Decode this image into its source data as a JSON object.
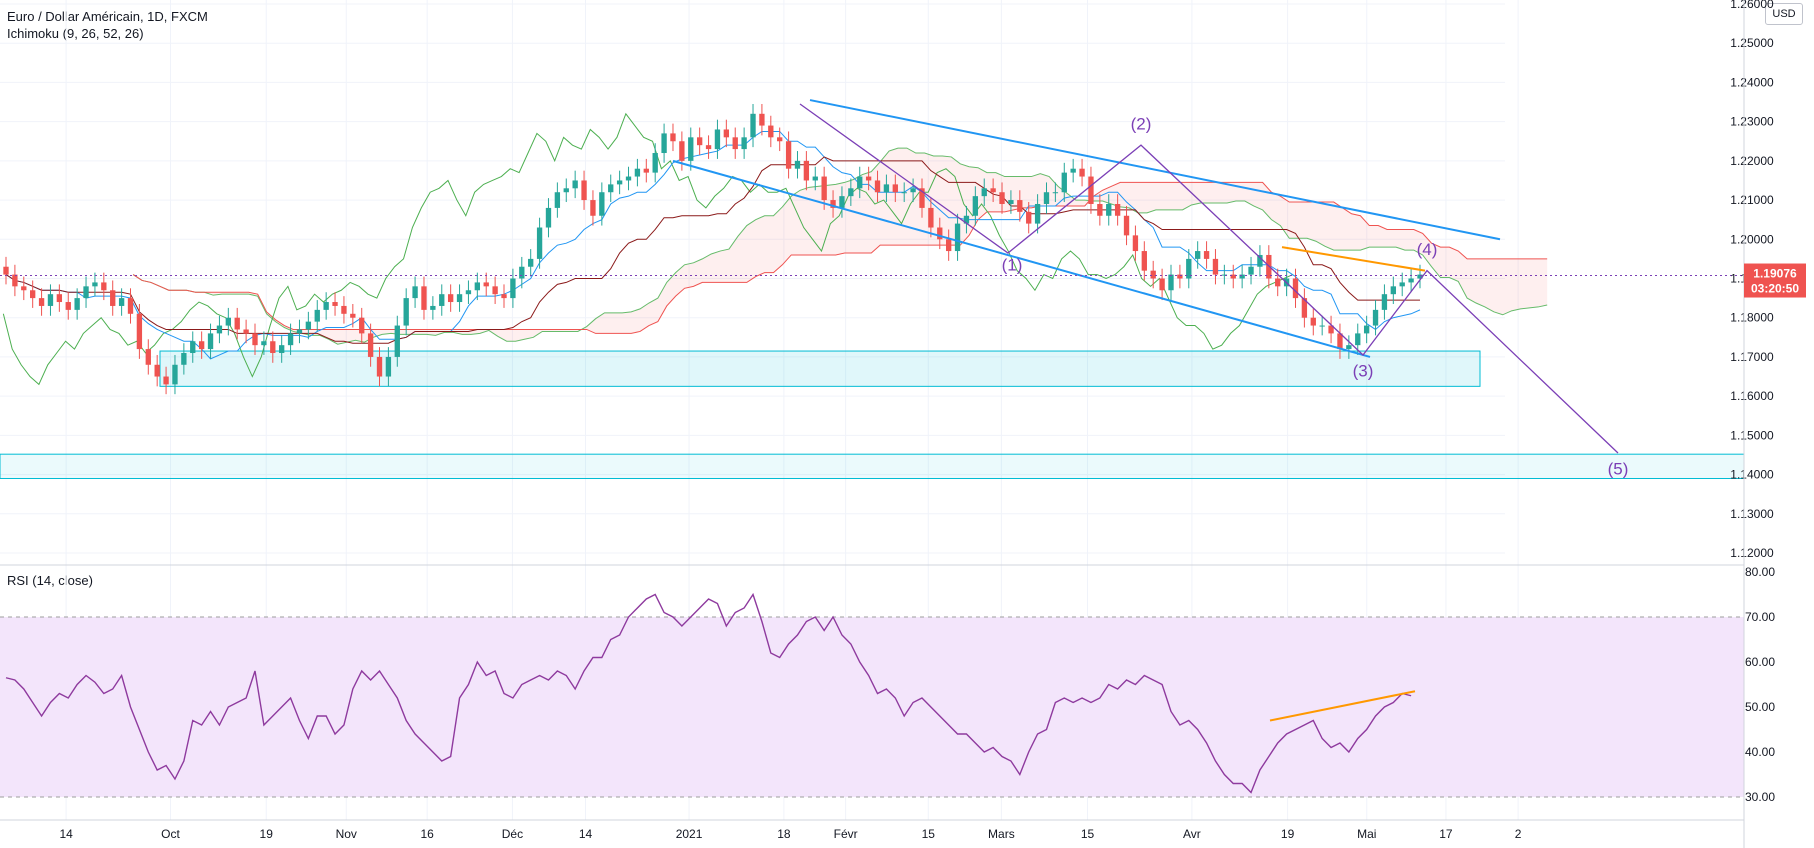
{
  "header": {
    "title": "Euro / Dollar Américain, 1D, FXCM",
    "indicator": "Ichimoku (9, 26, 52, 26)",
    "currency": "USD"
  },
  "rsi_panel": {
    "label": "RSI (14, close)"
  },
  "price_badge": {
    "price": "1.19076",
    "countdown": "03:20:50",
    "color": "#ef5350"
  },
  "colors": {
    "up_candle": "#26a69a",
    "down_candle": "#ef5350",
    "tenkan": "#2196f3",
    "kijun": "#8b1a1a",
    "chikou": "#4caf50",
    "trendline": "#2196f3",
    "wave_line": "#7b3fb6",
    "orange_line": "#ff9800",
    "zone": "#00bcd4",
    "rsi_line": "#8e3a9e",
    "rsi_band": "#f3e5fb"
  },
  "chart_data": [
    {
      "type": "candlestick",
      "title": "Euro / Dollar Américain, 1D, FXCM",
      "ylim": [
        1.12,
        1.26
      ],
      "y_ticks": [
        "1.26000",
        "1.25000",
        "1.24000",
        "1.23000",
        "1.22000",
        "1.21000",
        "1.20000",
        "1.19000",
        "1.18000",
        "1.17000",
        "1.16000",
        "1.15000",
        "1.14000",
        "1.13000",
        "1.12000"
      ],
      "x_ticks": [
        "14",
        "Oct",
        "19",
        "Nov",
        "16",
        "Déc",
        "14",
        "2021",
        "18",
        "Févr",
        "15",
        "Mars",
        "15",
        "Avr",
        "19",
        "Mai",
        "17",
        "2"
      ],
      "closes": [
        1.191,
        1.188,
        1.187,
        1.185,
        1.183,
        1.186,
        1.184,
        1.182,
        1.185,
        1.188,
        1.189,
        1.187,
        1.183,
        1.185,
        1.181,
        1.172,
        1.168,
        1.165,
        1.163,
        1.168,
        1.171,
        1.174,
        1.172,
        1.176,
        1.178,
        1.18,
        1.177,
        1.176,
        1.173,
        1.174,
        1.171,
        1.173,
        1.176,
        1.177,
        1.179,
        1.182,
        1.184,
        1.183,
        1.181,
        1.18,
        1.176,
        1.17,
        1.165,
        1.17,
        1.178,
        1.185,
        1.188,
        1.182,
        1.183,
        1.186,
        1.184,
        1.186,
        1.187,
        1.189,
        1.188,
        1.186,
        1.185,
        1.19,
        1.193,
        1.195,
        1.203,
        1.208,
        1.212,
        1.213,
        1.215,
        1.21,
        1.206,
        1.212,
        1.214,
        1.215,
        1.216,
        1.218,
        1.217,
        1.222,
        1.227,
        1.225,
        1.22,
        1.226,
        1.224,
        1.223,
        1.228,
        1.226,
        1.223,
        1.226,
        1.232,
        1.229,
        1.226,
        1.225,
        1.218,
        1.22,
        1.215,
        1.216,
        1.21,
        1.208,
        1.211,
        1.213,
        1.216,
        1.215,
        1.212,
        1.214,
        1.212,
        1.212,
        1.213,
        1.208,
        1.203,
        1.2,
        1.197,
        1.204,
        1.206,
        1.211,
        1.213,
        1.212,
        1.209,
        1.21,
        1.207,
        1.204,
        1.209,
        1.212,
        1.212,
        1.217,
        1.218,
        1.216,
        1.209,
        1.206,
        1.209,
        1.206,
        1.201,
        1.197,
        1.192,
        1.19,
        1.187,
        1.191,
        1.19,
        1.195,
        1.197,
        1.195,
        1.191,
        1.191,
        1.19,
        1.191,
        1.193,
        1.196,
        1.19,
        1.188,
        1.19,
        1.185,
        1.18,
        1.178,
        1.178,
        1.176,
        1.172,
        1.173,
        1.176,
        1.178,
        1.182,
        1.186,
        1.188,
        1.189,
        1.19,
        1.191
      ],
      "annotations": [
        "(1)",
        "(2)",
        "(3)",
        "(4)",
        "(5)"
      ]
    },
    {
      "type": "line",
      "title": "RSI (14, close)",
      "ylim": [
        30,
        80
      ],
      "y_ticks": [
        "80.00",
        "70.00",
        "60.00",
        "50.00",
        "40.00",
        "30.00"
      ],
      "bands": [
        30,
        70
      ],
      "values": [
        56.5,
        56,
        54,
        51,
        48,
        51,
        53,
        52,
        55,
        57,
        55.5,
        53,
        54,
        57,
        50,
        45,
        40,
        36,
        37,
        34,
        38,
        47,
        46,
        49,
        46,
        50,
        51,
        52,
        58,
        46,
        48,
        50,
        52,
        47,
        43,
        48,
        48,
        44,
        46,
        54,
        58,
        56,
        58,
        55,
        52,
        47,
        44,
        42,
        40,
        38,
        39,
        52,
        55,
        60,
        57,
        58,
        53,
        52,
        55,
        56,
        57,
        56,
        58,
        57,
        54,
        58,
        61,
        61,
        65,
        66,
        70,
        72,
        74,
        75,
        71,
        70,
        68,
        70,
        72,
        74,
        73,
        68,
        71,
        72,
        75,
        69,
        62,
        61,
        64,
        66,
        69,
        70,
        67,
        70,
        66,
        64,
        60,
        57,
        53,
        54,
        52,
        48,
        51,
        52,
        50,
        48,
        46,
        44,
        44,
        42,
        40,
        41,
        39,
        38,
        35,
        40,
        44,
        45,
        51,
        52,
        51,
        52,
        51,
        52,
        55,
        54,
        56,
        55,
        57,
        56,
        55,
        49,
        46,
        47,
        45,
        42,
        38,
        35,
        33,
        33,
        31,
        36,
        39,
        42,
        44,
        45,
        46,
        47,
        43,
        41,
        42,
        40,
        43,
        45,
        48,
        50,
        51,
        53,
        52.5
      ]
    }
  ]
}
